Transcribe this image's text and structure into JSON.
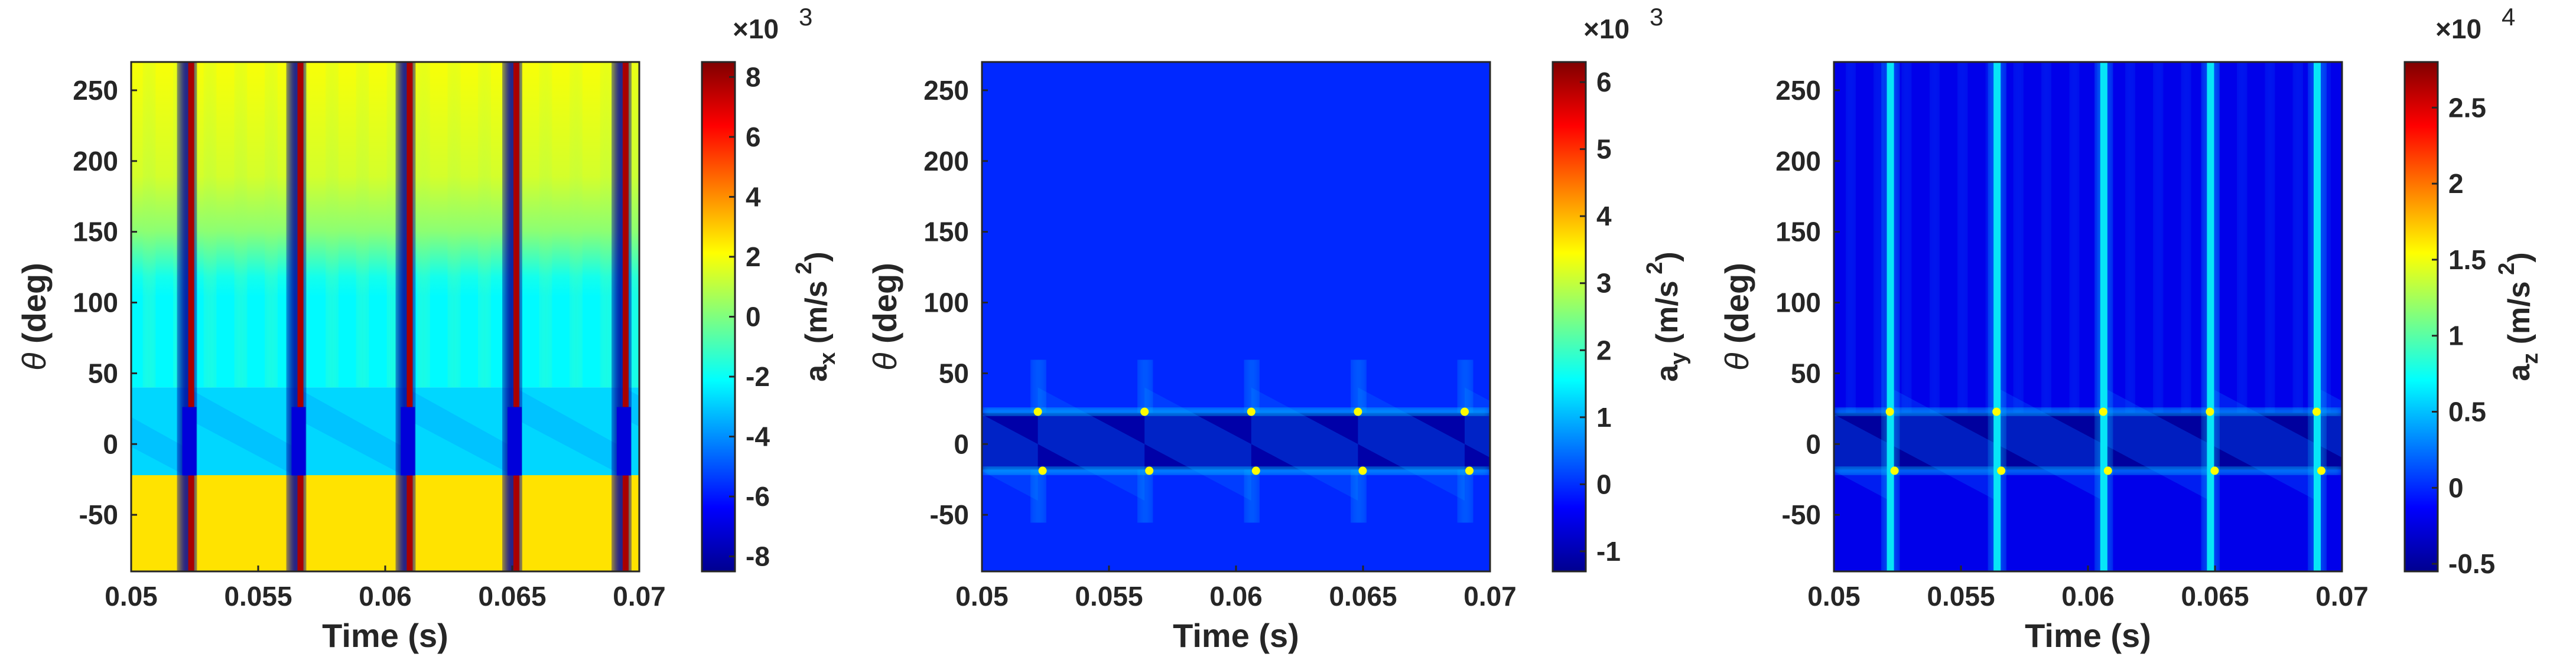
{
  "chart_data": [
    {
      "type": "heatmap",
      "x": {
        "label": "Time (s)",
        "lim": [
          0.05,
          0.07
        ],
        "ticks": [
          0.05,
          0.055,
          0.06,
          0.065,
          0.07
        ],
        "tick_labels": [
          "0.05",
          "0.055",
          "0.06",
          "0.065",
          "0.07"
        ]
      },
      "y": {
        "label_symbol": "θ",
        "label_text": " (deg)",
        "lim": [
          -90,
          270
        ],
        "ticks": [
          -50,
          0,
          50,
          100,
          150,
          200,
          250
        ],
        "tick_labels": [
          "-50",
          "0",
          "50",
          "100",
          "150",
          "200",
          "250"
        ]
      },
      "colorbar": {
        "label_main": "a",
        "label_sub": "x",
        "label_unit": " (m/s",
        "label_sup": "2",
        "label_close": ")",
        "multiplier": "×10",
        "multiplier_exp": "3",
        "lim": [
          -8.5,
          8.5
        ],
        "ticks": [
          -8,
          -6,
          -4,
          -2,
          0,
          2,
          4,
          6,
          8
        ],
        "tick_labels": [
          "-8",
          "-6",
          "-4",
          "-2",
          "0",
          "2",
          "4",
          "6",
          "8"
        ]
      },
      "colormap": "jet",
      "pattern": "ax",
      "impact_times": [
        0.0522,
        0.0565,
        0.0608,
        0.065,
        0.0693
      ],
      "contact_band_deg": [
        -18,
        22
      ]
    },
    {
      "type": "heatmap",
      "x": {
        "label": "Time (s)",
        "lim": [
          0.05,
          0.07
        ],
        "ticks": [
          0.05,
          0.055,
          0.06,
          0.065,
          0.07
        ],
        "tick_labels": [
          "0.05",
          "0.055",
          "0.06",
          "0.065",
          "0.07"
        ]
      },
      "y": {
        "label_symbol": "θ",
        "label_text": " (deg)",
        "lim": [
          -90,
          270
        ],
        "ticks": [
          -50,
          0,
          50,
          100,
          150,
          200,
          250
        ],
        "tick_labels": [
          "-50",
          "0",
          "50",
          "100",
          "150",
          "200",
          "250"
        ]
      },
      "colorbar": {
        "label_main": "a",
        "label_sub": "y",
        "label_unit": " (m/s",
        "label_sup": "2",
        "label_close": ")",
        "multiplier": "×10",
        "multiplier_exp": "3",
        "lim": [
          -1.3,
          6.3
        ],
        "ticks": [
          -1,
          0,
          1,
          2,
          3,
          4,
          5,
          6
        ],
        "tick_labels": [
          "-1",
          "0",
          "1",
          "2",
          "3",
          "4",
          "5",
          "6"
        ]
      },
      "colormap": "jet",
      "pattern": "ay",
      "impact_times": [
        0.0522,
        0.0564,
        0.0606,
        0.0648,
        0.069
      ],
      "contact_band_deg": [
        -18,
        22
      ]
    },
    {
      "type": "heatmap",
      "x": {
        "label": "Time (s)",
        "lim": [
          0.05,
          0.07
        ],
        "ticks": [
          0.05,
          0.055,
          0.06,
          0.065,
          0.07
        ],
        "tick_labels": [
          "0.05",
          "0.055",
          "0.06",
          "0.065",
          "0.07"
        ]
      },
      "y": {
        "label_symbol": "θ",
        "label_text": " (deg)",
        "lim": [
          -90,
          270
        ],
        "ticks": [
          -50,
          0,
          50,
          100,
          150,
          200,
          250
        ],
        "tick_labels": [
          "-50",
          "0",
          "50",
          "100",
          "150",
          "200",
          "250"
        ]
      },
      "colorbar": {
        "label_main": "a",
        "label_sub": "z",
        "label_unit": " (m/s",
        "label_sup": "2",
        "label_close": ")",
        "multiplier": "×10",
        "multiplier_exp": "4",
        "lim": [
          -0.55,
          2.8
        ],
        "ticks": [
          -0.5,
          0,
          0.5,
          1,
          1.5,
          2,
          2.5
        ],
        "tick_labels": [
          "-0.5",
          "0",
          "0.5",
          "1",
          "1.5",
          "2",
          "2.5"
        ]
      },
      "colormap": "jet",
      "pattern": "az",
      "impact_times": [
        0.0522,
        0.0564,
        0.0606,
        0.0648,
        0.069
      ],
      "contact_band_deg": [
        -18,
        22
      ]
    }
  ]
}
